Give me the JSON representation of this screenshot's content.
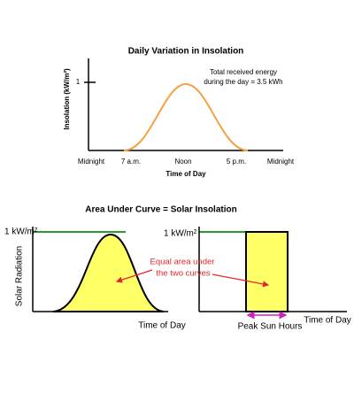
{
  "top_chart": {
    "title": "Daily Variation in Insolation",
    "y_axis_label": "Insolation (kW/m²)",
    "y_tick": "1",
    "annotation": [
      "Total received energy",
      "during the day = 3.5 kWh"
    ],
    "x_ticks": [
      "Midnight",
      "7 a.m.",
      "Noon",
      "5 p.m.",
      "Midnight"
    ],
    "x_axis_label": "Time of Day"
  },
  "bottom": {
    "title": "Area Under Curve = Solar Insolation",
    "left_chart": {
      "level_label": "1 kW/m²",
      "y_axis_label": "Solar Radiation",
      "x_axis_label": "Time of Day"
    },
    "right_chart": {
      "level_label": "1 kW/m²",
      "x_axis_label": "Time of Day",
      "span_label": "Peak Sun Hours"
    },
    "note": [
      "Equal area under",
      "the two curves"
    ]
  }
}
